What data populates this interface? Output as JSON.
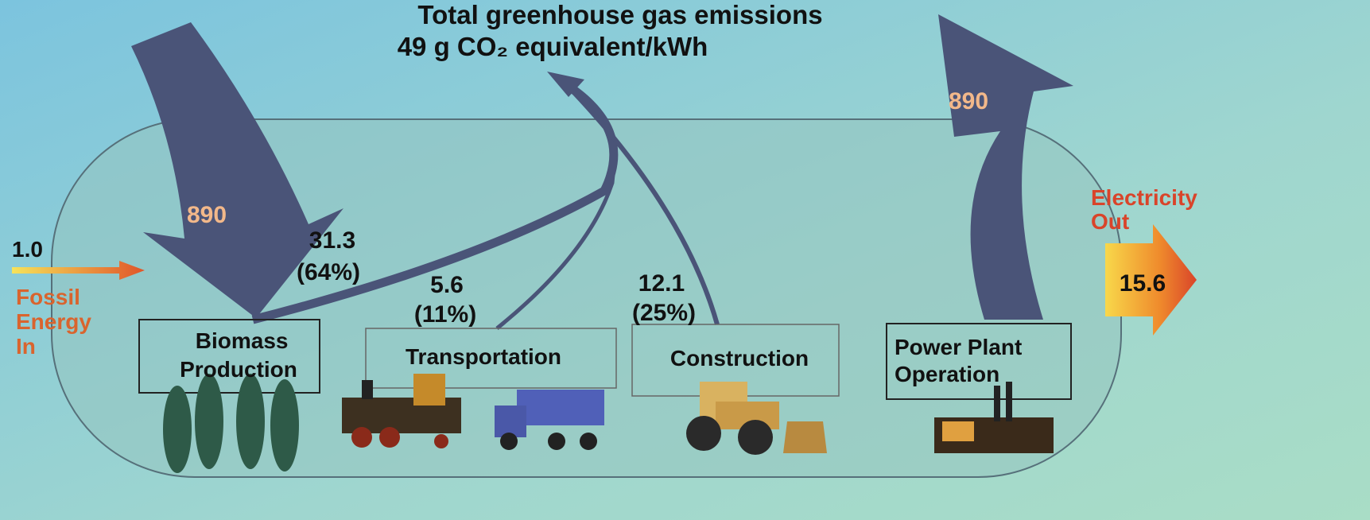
{
  "header": {
    "title": "Total greenhouse gas emissions",
    "subtitle": "49 g CO₂ equivalent/kWh"
  },
  "flows": {
    "input": {
      "value": "1.0",
      "label": [
        "Fossil",
        "Energy",
        "In"
      ]
    },
    "output": {
      "label": [
        "Electricity",
        "Out"
      ],
      "value": "15.6"
    },
    "biomass_uptake": "890",
    "power_plant_release": "890",
    "emissions": [
      {
        "value": "31.3",
        "share": "(64%)"
      },
      {
        "value": "5.6",
        "share": "(11%)"
      },
      {
        "value": "12.1",
        "share": "(25%)"
      }
    ]
  },
  "stages": [
    {
      "label": [
        "Biomass",
        "Production"
      ]
    },
    {
      "label": [
        "Transportation"
      ]
    },
    {
      "label": [
        "Construction"
      ]
    },
    {
      "label": [
        "Power Plant",
        "Operation"
      ]
    }
  ]
}
